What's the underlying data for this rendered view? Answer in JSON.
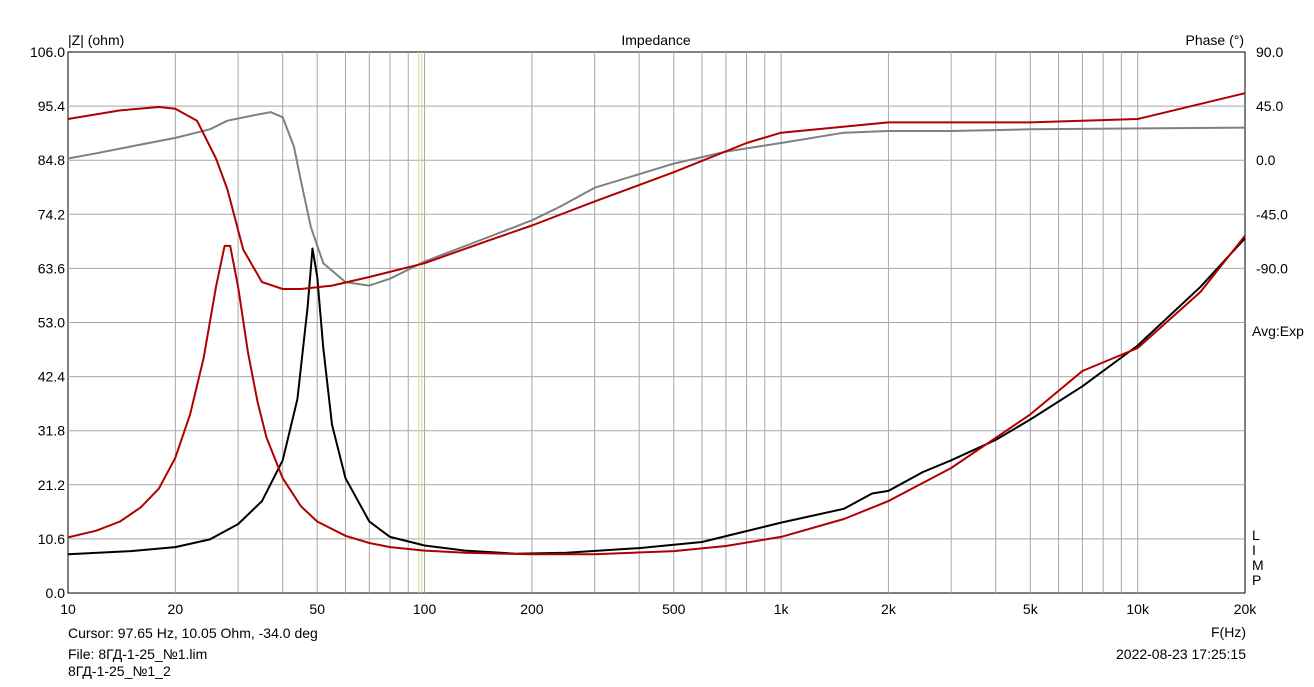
{
  "chart_data": {
    "type": "line",
    "title": "Impedance",
    "ylabel_left": "|Z| (ohm)",
    "ylabel_right": "Phase (°)",
    "xlabel": "F(Hz)",
    "x_scale": "log",
    "xlim": [
      10,
      20000
    ],
    "ylim_left": [
      0.0,
      106.0
    ],
    "ylim_right": [
      -225,
      90
    ],
    "grid": true,
    "x_ticks": [
      {
        "v": 10,
        "label": "10"
      },
      {
        "v": 20,
        "label": "20"
      },
      {
        "v": 50,
        "label": "50"
      },
      {
        "v": 100,
        "label": "100"
      },
      {
        "v": 200,
        "label": "200"
      },
      {
        "v": 500,
        "label": "500"
      },
      {
        "v": 1000,
        "label": "1k"
      },
      {
        "v": 2000,
        "label": "2k"
      },
      {
        "v": 5000,
        "label": "5k"
      },
      {
        "v": 10000,
        "label": "10k"
      },
      {
        "v": 20000,
        "label": "20k"
      }
    ],
    "y_left_ticks": [
      "0.0",
      "10.6",
      "21.2",
      "31.8",
      "42.4",
      "53.0",
      "63.6",
      "74.2",
      "84.8",
      "95.4",
      "106.0"
    ],
    "y_right_ticks": [
      "90.0",
      "45.0",
      "0.0",
      "-45.0",
      "-90.0"
    ],
    "cursor_x": 97.65,
    "series": [
      {
        "role": "impedance-fit",
        "axis": "left",
        "color": "#b00000",
        "points": [
          [
            10,
            10.9
          ],
          [
            12,
            12.2
          ],
          [
            14,
            14.0
          ],
          [
            16,
            16.8
          ],
          [
            18,
            20.5
          ],
          [
            20,
            26.5
          ],
          [
            22,
            35.0
          ],
          [
            24,
            46.0
          ],
          [
            26,
            60.0
          ],
          [
            27.5,
            68.0
          ],
          [
            28.5,
            68.0
          ],
          [
            30,
            60.0
          ],
          [
            32,
            47.0
          ],
          [
            34,
            37.5
          ],
          [
            36,
            30.5
          ],
          [
            40,
            22.5
          ],
          [
            45,
            17.0
          ],
          [
            50,
            14.0
          ],
          [
            60,
            11.2
          ],
          [
            70,
            9.8
          ],
          [
            80,
            9.0
          ],
          [
            100,
            8.3
          ],
          [
            130,
            7.9
          ],
          [
            170,
            7.7
          ],
          [
            200,
            7.6
          ],
          [
            300,
            7.6
          ],
          [
            500,
            8.2
          ],
          [
            700,
            9.2
          ],
          [
            1000,
            11.0
          ],
          [
            1500,
            14.5
          ],
          [
            2000,
            18.0
          ],
          [
            3000,
            24.5
          ],
          [
            5000,
            35.0
          ],
          [
            7000,
            43.5
          ],
          [
            10000,
            48.0
          ],
          [
            15000,
            59.0
          ],
          [
            20000,
            70.0
          ]
        ]
      },
      {
        "role": "impedance-measured",
        "axis": "left",
        "color": "#000000",
        "points": [
          [
            10,
            7.6
          ],
          [
            15,
            8.2
          ],
          [
            20,
            9.0
          ],
          [
            25,
            10.5
          ],
          [
            30,
            13.5
          ],
          [
            35,
            18.0
          ],
          [
            40,
            26.0
          ],
          [
            44,
            38.0
          ],
          [
            47,
            56.0
          ],
          [
            48.5,
            67.5
          ],
          [
            50,
            62.0
          ],
          [
            52,
            48.0
          ],
          [
            55,
            33.0
          ],
          [
            60,
            22.5
          ],
          [
            70,
            14.0
          ],
          [
            80,
            11.0
          ],
          [
            100,
            9.3
          ],
          [
            130,
            8.3
          ],
          [
            180,
            7.7
          ],
          [
            250,
            7.9
          ],
          [
            400,
            8.8
          ],
          [
            600,
            10.0
          ],
          [
            1000,
            13.8
          ],
          [
            1500,
            16.5
          ],
          [
            1800,
            19.5
          ],
          [
            2000,
            20.0
          ],
          [
            2500,
            23.7
          ],
          [
            3000,
            26.0
          ],
          [
            4000,
            30.0
          ],
          [
            5000,
            34.0
          ],
          [
            7000,
            40.5
          ],
          [
            10000,
            48.5
          ],
          [
            15000,
            60.0
          ],
          [
            20000,
            69.5
          ]
        ]
      },
      {
        "role": "phase-fit",
        "axis": "right",
        "color": "#b00000",
        "points": [
          [
            10,
            51
          ],
          [
            14,
            56
          ],
          [
            18,
            58
          ],
          [
            20,
            57
          ],
          [
            23,
            50
          ],
          [
            26,
            28
          ],
          [
            28,
            10
          ],
          [
            31,
            -25
          ],
          [
            35,
            -44
          ],
          [
            40,
            -48
          ],
          [
            45,
            -48
          ],
          [
            55,
            -46
          ],
          [
            70,
            -41
          ],
          [
            100,
            -33
          ],
          [
            150,
            -20
          ],
          [
            200,
            -11
          ],
          [
            300,
            3
          ],
          [
            500,
            20
          ],
          [
            800,
            37
          ],
          [
            1000,
            43
          ],
          [
            2000,
            49
          ],
          [
            5000,
            49
          ],
          [
            10000,
            51
          ],
          [
            20000,
            66
          ]
        ]
      },
      {
        "role": "phase-measured",
        "axis": "right",
        "color": "#808080",
        "points": [
          [
            10,
            28
          ],
          [
            12,
            31
          ],
          [
            15,
            35
          ],
          [
            20,
            40
          ],
          [
            25,
            45
          ],
          [
            28,
            50
          ],
          [
            33,
            53
          ],
          [
            37,
            55
          ],
          [
            40,
            52
          ],
          [
            43,
            35
          ],
          [
            45,
            15
          ],
          [
            48,
            -12
          ],
          [
            52,
            -33
          ],
          [
            60,
            -44
          ],
          [
            70,
            -46
          ],
          [
            80,
            -42
          ],
          [
            100,
            -32
          ],
          [
            150,
            -18
          ],
          [
            200,
            -8
          ],
          [
            240,
            0
          ],
          [
            300,
            11
          ],
          [
            500,
            25
          ],
          [
            700,
            32
          ],
          [
            1000,
            37
          ],
          [
            1500,
            43
          ],
          [
            2000,
            44
          ],
          [
            3000,
            44
          ],
          [
            5000,
            45
          ],
          [
            20000,
            46
          ]
        ]
      }
    ]
  },
  "right_panel": {
    "avg_label": "Avg:Exp",
    "vertical_letters": [
      "L",
      "I",
      "M",
      "P"
    ]
  },
  "info": {
    "cursor": "Cursor: 97.65 Hz, 10.05 Ohm, -34.0 deg",
    "file": "File: 8ГД-1-25_№1.lim",
    "name": "8ГД-1-25_№1_2",
    "date": "2022-08-23 17:25:15"
  }
}
